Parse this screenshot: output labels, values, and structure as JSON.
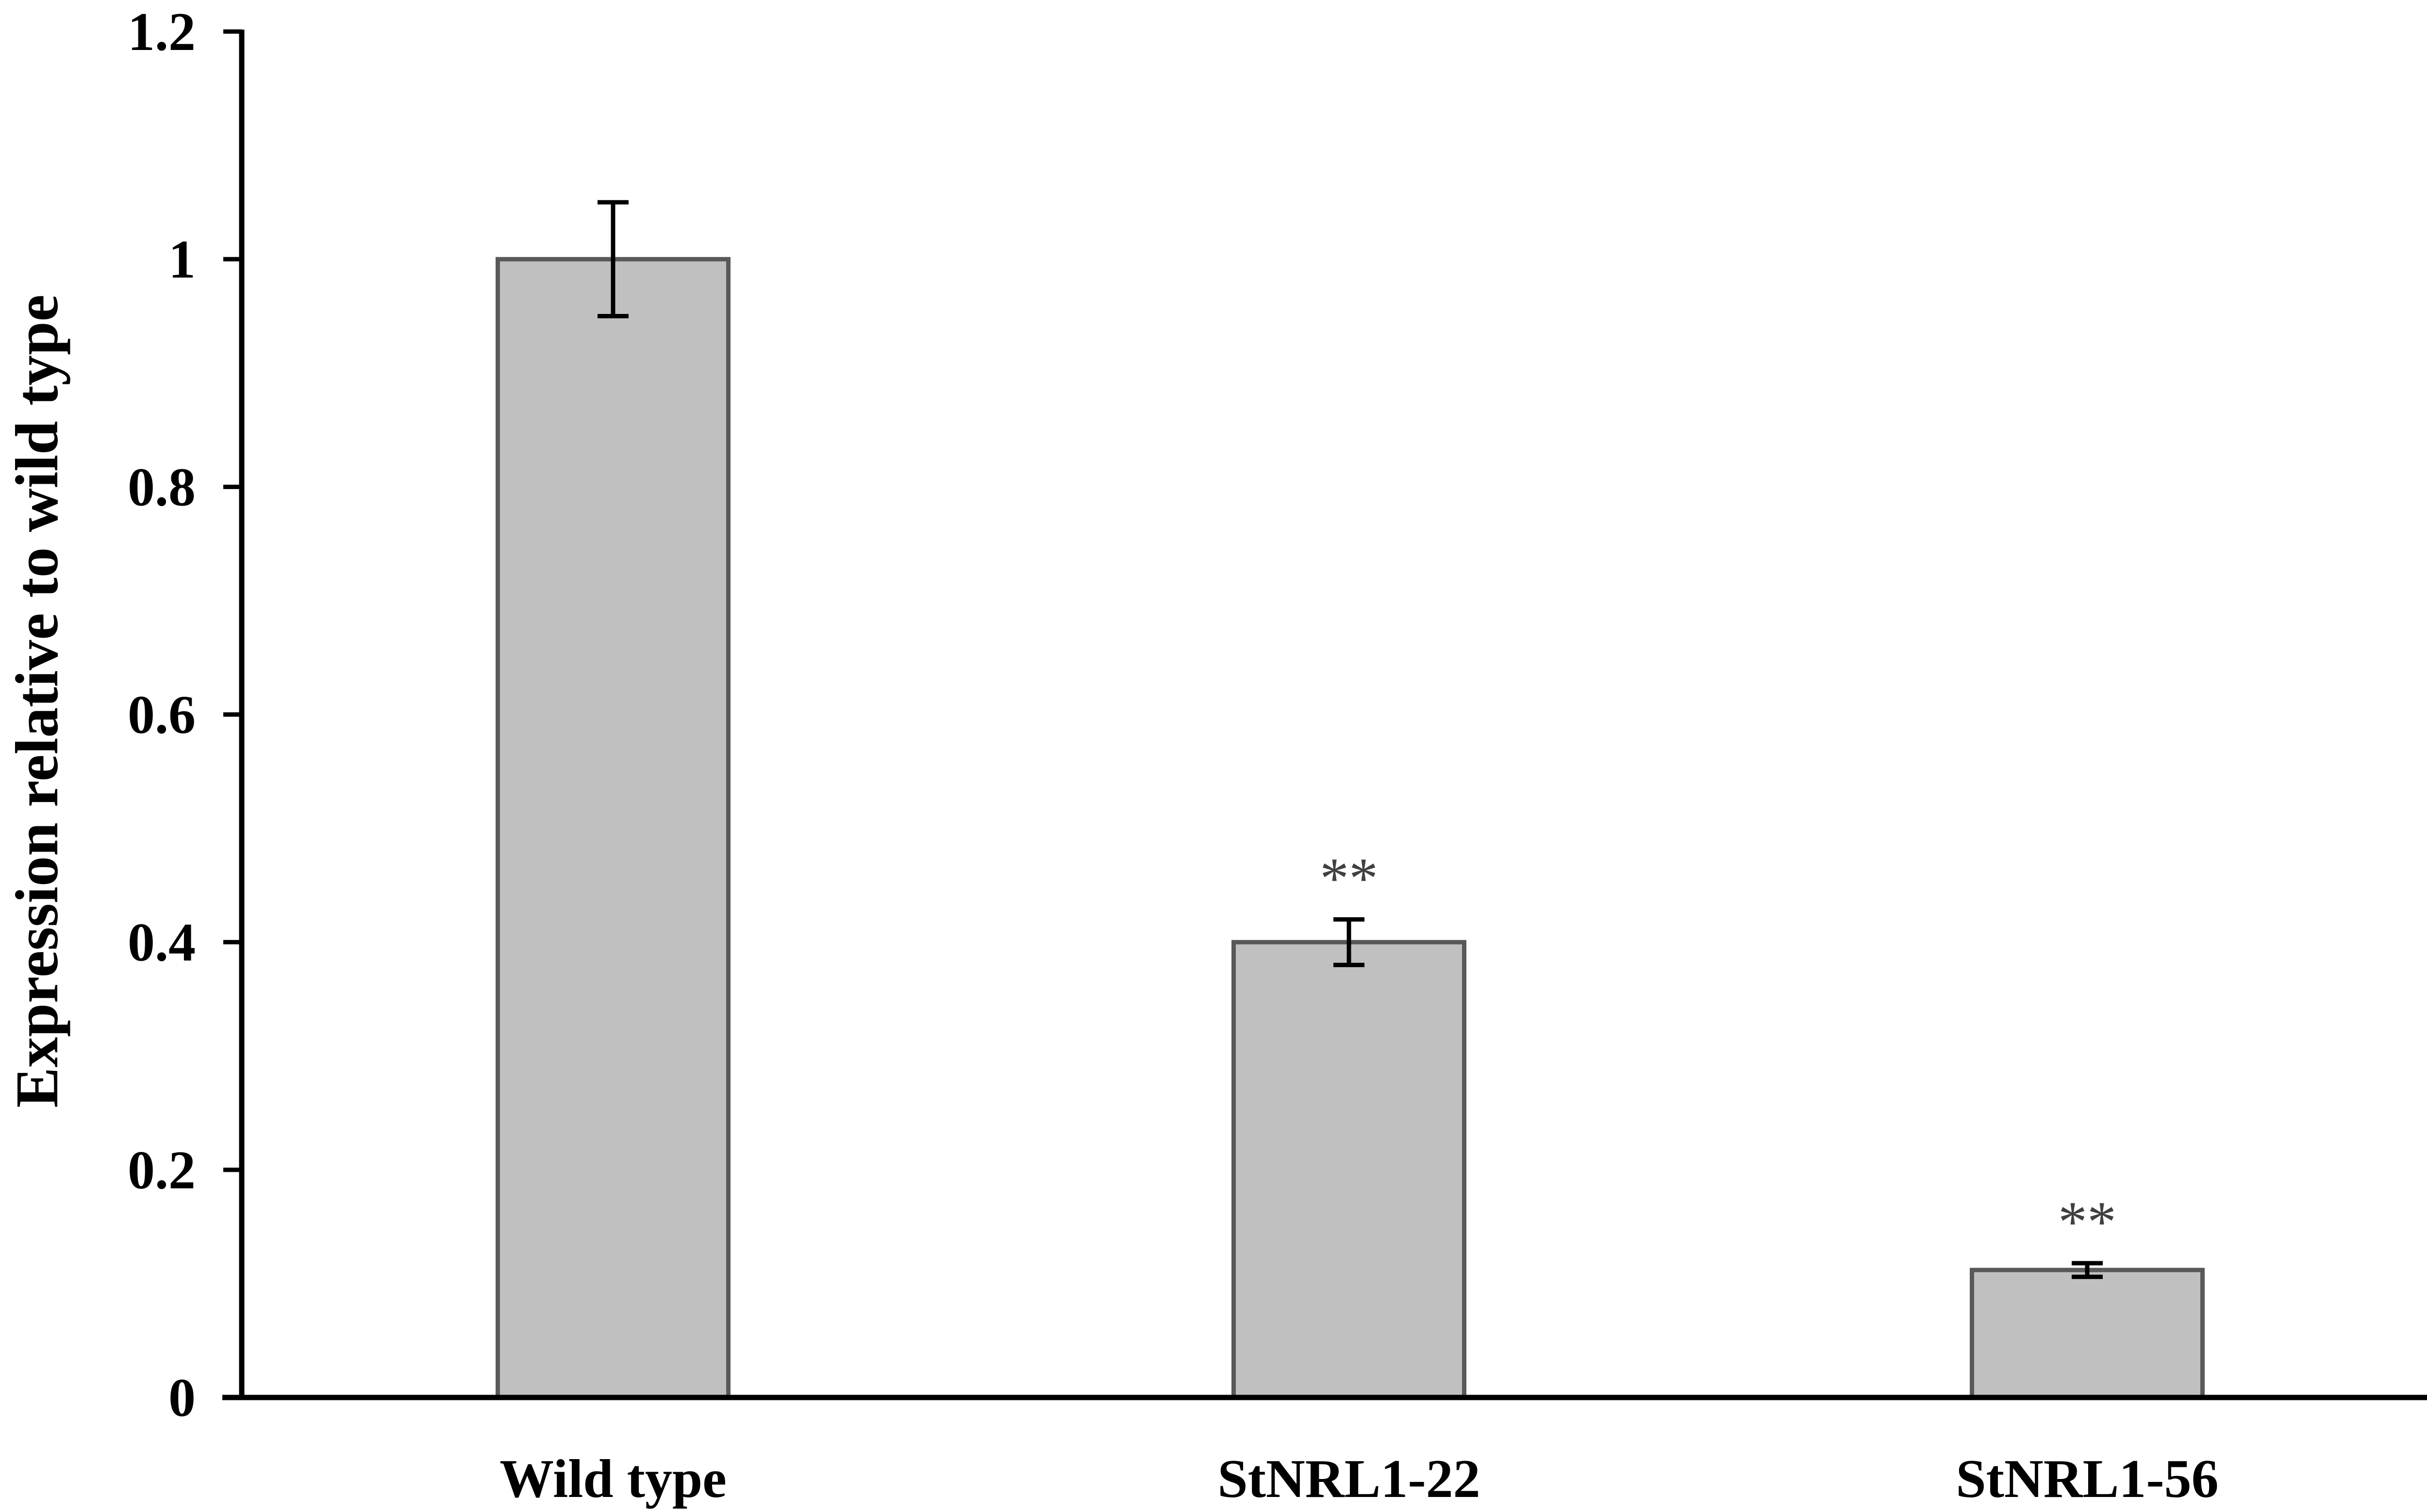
{
  "chart_data": {
    "type": "bar",
    "categories": [
      "Wild type",
      "StNRL1-22",
      "StNRL1-56"
    ],
    "values": [
      1.0,
      0.4,
      0.112
    ],
    "errors": [
      0.05,
      0.02,
      0.006
    ],
    "annotations": [
      "",
      "**",
      "**"
    ],
    "xlabel": "",
    "ylabel": "Expression relative to wild type",
    "ylim": [
      0,
      1.2
    ],
    "yticks": [
      0,
      0.2,
      0.4,
      0.6,
      0.8,
      1,
      1.2
    ],
    "ytick_labels": [
      "0",
      "0.2",
      "0.4",
      "0.6",
      "0.8",
      "1",
      "1.2"
    ],
    "grid": false,
    "legend": "none",
    "colors": {
      "bar_fill": "#c0c0c0",
      "bar_stroke": "#595959",
      "axis": "#000000",
      "error_bar": "#000000",
      "annotation": "#404040"
    }
  }
}
